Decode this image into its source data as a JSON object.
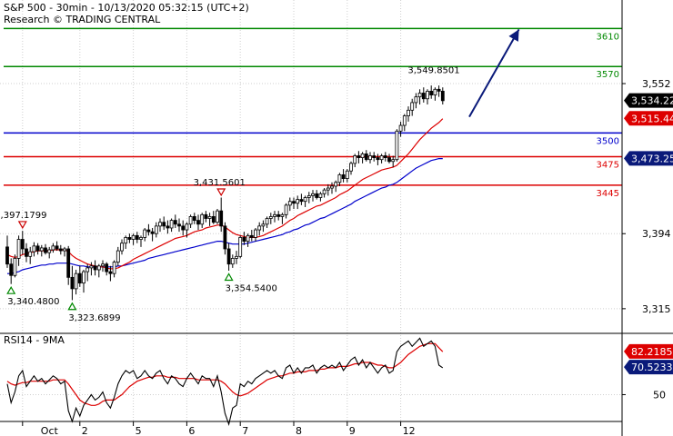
{
  "header": {
    "title": "S&P 500 - 30min - 10/13/2020 05:32:15 (UTC+2)",
    "subtitle": "Research © TRADING CENTRAL"
  },
  "colors": {
    "price": "#000000",
    "ma_fast": "#dd0000",
    "ma_slow": "#0000cc",
    "resistance": "#008800",
    "pivot": "#0000cc",
    "support": "#dd0000",
    "arrow": "#0a1a7a",
    "badge_last": "#000000",
    "badge_fast": "#dd0000",
    "badge_slow": "#0a1a7a",
    "grid": "#cfcfcf",
    "rsi": "#000000",
    "rsi_ma": "#dd0000"
  },
  "chart_data": [
    {
      "type": "candlestick",
      "ylim": [
        3290,
        3640
      ],
      "ytick_labels": [
        "3,552",
        "3,394",
        "3,315"
      ],
      "yticks": [
        3552,
        3394,
        3315
      ],
      "xtick_labels": [
        "Oct",
        "2",
        "5",
        "6",
        "7",
        "8",
        "9",
        "12"
      ],
      "grid": true,
      "levels": [
        {
          "value": 3610,
          "label": "3610",
          "kind": "resistance"
        },
        {
          "value": 3570,
          "label": "3570",
          "kind": "resistance"
        },
        {
          "value": 3500,
          "label": "3500",
          "kind": "pivot"
        },
        {
          "value": 3475,
          "label": "3475",
          "kind": "support"
        },
        {
          "value": 3445,
          "label": "3445",
          "kind": "support"
        }
      ],
      "badges": [
        {
          "value": 3534.22,
          "label": "3,534.22",
          "kind": "last"
        },
        {
          "value": 3515.44,
          "label": "3,515.44",
          "kind": "fast"
        },
        {
          "value": 3473.25,
          "label": "3,473.25",
          "kind": "slow"
        }
      ],
      "annotations": [
        {
          "label": "3,397.1799",
          "value": 3397.1799,
          "bar": 4,
          "kind": "high"
        },
        {
          "label": "3,340.4800",
          "value": 3340.48,
          "bar": 1,
          "kind": "low"
        },
        {
          "label": "3,323.6899",
          "value": 3323.6899,
          "bar": 17,
          "kind": "low"
        },
        {
          "label": "3,431.5601",
          "value": 3431.5601,
          "bar": 56,
          "kind": "high"
        },
        {
          "label": "3,354.5400",
          "value": 3354.54,
          "bar": 58,
          "kind": "low"
        },
        {
          "label": "3,549.8501",
          "value": 3549.8501,
          "bar": 112,
          "kind": "high"
        }
      ],
      "projection": {
        "from": [
          3517,
          120
        ],
        "to": [
          3609,
          133
        ]
      },
      "ohlc": [
        [
          3380,
          3392,
          3358,
          3362
        ],
        [
          3362,
          3368,
          3341,
          3350
        ],
        [
          3350,
          3372,
          3348,
          3368
        ],
        [
          3368,
          3392,
          3360,
          3388
        ],
        [
          3388,
          3397,
          3372,
          3378
        ],
        [
          3378,
          3384,
          3364,
          3370
        ],
        [
          3370,
          3380,
          3362,
          3375
        ],
        [
          3375,
          3385,
          3370,
          3381
        ],
        [
          3381,
          3384,
          3372,
          3376
        ],
        [
          3376,
          3382,
          3370,
          3379
        ],
        [
          3379,
          3383,
          3372,
          3374
        ],
        [
          3374,
          3380,
          3368,
          3377
        ],
        [
          3377,
          3384,
          3374,
          3381
        ],
        [
          3381,
          3386,
          3376,
          3378
        ],
        [
          3378,
          3382,
          3372,
          3376
        ],
        [
          3376,
          3380,
          3370,
          3378
        ],
        [
          3378,
          3381,
          3340,
          3348
        ],
        [
          3348,
          3360,
          3324,
          3336
        ],
        [
          3336,
          3356,
          3330,
          3352
        ],
        [
          3352,
          3360,
          3338,
          3342
        ],
        [
          3342,
          3356,
          3332,
          3354
        ],
        [
          3354,
          3362,
          3344,
          3358
        ],
        [
          3358,
          3364,
          3350,
          3360
        ],
        [
          3360,
          3366,
          3350,
          3356
        ],
        [
          3356,
          3362,
          3348,
          3360
        ],
        [
          3360,
          3366,
          3354,
          3362
        ],
        [
          3362,
          3364,
          3350,
          3354
        ],
        [
          3354,
          3360,
          3344,
          3352
        ],
        [
          3352,
          3366,
          3348,
          3364
        ],
        [
          3364,
          3380,
          3360,
          3376
        ],
        [
          3376,
          3388,
          3372,
          3384
        ],
        [
          3384,
          3392,
          3378,
          3390
        ],
        [
          3390,
          3394,
          3384,
          3388
        ],
        [
          3388,
          3394,
          3382,
          3392
        ],
        [
          3392,
          3396,
          3384,
          3388
        ],
        [
          3388,
          3392,
          3380,
          3390
        ],
        [
          3390,
          3400,
          3386,
          3398
        ],
        [
          3398,
          3404,
          3392,
          3396
        ],
        [
          3396,
          3400,
          3386,
          3394
        ],
        [
          3394,
          3406,
          3390,
          3402
        ],
        [
          3402,
          3410,
          3396,
          3406
        ],
        [
          3406,
          3412,
          3398,
          3402
        ],
        [
          3402,
          3408,
          3394,
          3400
        ],
        [
          3400,
          3410,
          3396,
          3408
        ],
        [
          3408,
          3414,
          3400,
          3404
        ],
        [
          3404,
          3410,
          3396,
          3402
        ],
        [
          3402,
          3408,
          3392,
          3398
        ],
        [
          3398,
          3406,
          3390,
          3404
        ],
        [
          3404,
          3414,
          3400,
          3412
        ],
        [
          3412,
          3416,
          3404,
          3408
        ],
        [
          3408,
          3414,
          3398,
          3404
        ],
        [
          3404,
          3416,
          3400,
          3414
        ],
        [
          3414,
          3418,
          3406,
          3410
        ],
        [
          3410,
          3416,
          3402,
          3412
        ],
        [
          3412,
          3418,
          3404,
          3406
        ],
        [
          3406,
          3420,
          3404,
          3418
        ],
        [
          3418,
          3432,
          3396,
          3402
        ],
        [
          3402,
          3406,
          3372,
          3378
        ],
        [
          3378,
          3384,
          3355,
          3362
        ],
        [
          3362,
          3372,
          3358,
          3368
        ],
        [
          3368,
          3376,
          3362,
          3370
        ],
        [
          3370,
          3392,
          3368,
          3390
        ],
        [
          3390,
          3396,
          3382,
          3386
        ],
        [
          3386,
          3394,
          3380,
          3392
        ],
        [
          3392,
          3398,
          3386,
          3390
        ],
        [
          3390,
          3400,
          3386,
          3398
        ],
        [
          3398,
          3406,
          3392,
          3402
        ],
        [
          3402,
          3408,
          3396,
          3404
        ],
        [
          3404,
          3412,
          3400,
          3410
        ],
        [
          3410,
          3416,
          3404,
          3412
        ],
        [
          3412,
          3418,
          3406,
          3414
        ],
        [
          3414,
          3418,
          3408,
          3412
        ],
        [
          3412,
          3416,
          3404,
          3414
        ],
        [
          3414,
          3426,
          3410,
          3424
        ],
        [
          3424,
          3432,
          3418,
          3428
        ],
        [
          3428,
          3432,
          3420,
          3426
        ],
        [
          3426,
          3434,
          3420,
          3430
        ],
        [
          3430,
          3436,
          3424,
          3428
        ],
        [
          3428,
          3434,
          3422,
          3432
        ],
        [
          3432,
          3438,
          3426,
          3434
        ],
        [
          3434,
          3440,
          3428,
          3436
        ],
        [
          3436,
          3440,
          3430,
          3432
        ],
        [
          3432,
          3438,
          3428,
          3436
        ],
        [
          3436,
          3442,
          3432,
          3440
        ],
        [
          3440,
          3446,
          3434,
          3442
        ],
        [
          3442,
          3448,
          3436,
          3444
        ],
        [
          3444,
          3450,
          3438,
          3448
        ],
        [
          3448,
          3458,
          3444,
          3456
        ],
        [
          3456,
          3462,
          3448,
          3452
        ],
        [
          3452,
          3462,
          3448,
          3460
        ],
        [
          3460,
          3470,
          3456,
          3468
        ],
        [
          3468,
          3478,
          3464,
          3476
        ],
        [
          3476,
          3481,
          3468,
          3474
        ],
        [
          3474,
          3480,
          3468,
          3478
        ],
        [
          3478,
          3482,
          3470,
          3472
        ],
        [
          3472,
          3480,
          3468,
          3476
        ],
        [
          3476,
          3480,
          3470,
          3474
        ],
        [
          3474,
          3478,
          3466,
          3472
        ],
        [
          3472,
          3478,
          3468,
          3476
        ],
        [
          3476,
          3480,
          3470,
          3474
        ],
        [
          3474,
          3478,
          3468,
          3470
        ],
        [
          3470,
          3476,
          3464,
          3472
        ],
        [
          3472,
          3504,
          3470,
          3502
        ],
        [
          3502,
          3512,
          3496,
          3508
        ],
        [
          3508,
          3520,
          3502,
          3518
        ],
        [
          3518,
          3528,
          3512,
          3524
        ],
        [
          3524,
          3536,
          3518,
          3532
        ],
        [
          3532,
          3542,
          3526,
          3538
        ],
        [
          3538,
          3546,
          3530,
          3542
        ],
        [
          3542,
          3548,
          3532,
          3536
        ],
        [
          3536,
          3546,
          3530,
          3544
        ],
        [
          3544,
          3550,
          3536,
          3540
        ],
        [
          3540,
          3548,
          3534,
          3546
        ],
        [
          3546,
          3550,
          3538,
          3544
        ],
        [
          3544,
          3548,
          3530,
          3534
        ]
      ],
      "ma_fast": [
        3372,
        3370,
        3369,
        3370,
        3372,
        3373,
        3374,
        3375,
        3376,
        3376,
        3376,
        3376,
        3377,
        3377,
        3377,
        3377,
        3375,
        3371,
        3368,
        3366,
        3364,
        3362,
        3361,
        3360,
        3359,
        3359,
        3358,
        3357,
        3357,
        3358,
        3360,
        3362,
        3364,
        3367,
        3369,
        3371,
        3373,
        3375,
        3377,
        3379,
        3381,
        3383,
        3385,
        3387,
        3389,
        3390,
        3391,
        3392,
        3394,
        3396,
        3397,
        3398,
        3400,
        3401,
        3402,
        3403,
        3403,
        3401,
        3398,
        3395,
        3393,
        3392,
        3391,
        3390,
        3390,
        3390,
        3391,
        3392,
        3394,
        3396,
        3398,
        3400,
        3402,
        3405,
        3408,
        3410,
        3413,
        3415,
        3417,
        3419,
        3421,
        3423,
        3424,
        3426,
        3428,
        3430,
        3432,
        3435,
        3437,
        3439,
        3442,
        3445,
        3448,
        3451,
        3453,
        3455,
        3457,
        3459,
        3461,
        3462,
        3463,
        3464,
        3466,
        3470,
        3474,
        3478,
        3483,
        3488,
        3493,
        3497,
        3501,
        3505,
        3508,
        3511,
        3515
      ],
      "ma_slow": [
        3352,
        3352,
        3353,
        3354,
        3356,
        3357,
        3358,
        3359,
        3360,
        3361,
        3361,
        3362,
        3362,
        3363,
        3363,
        3363,
        3363,
        3362,
        3361,
        3360,
        3360,
        3359,
        3359,
        3359,
        3359,
        3359,
        3359,
        3359,
        3359,
        3360,
        3360,
        3361,
        3362,
        3363,
        3364,
        3365,
        3366,
        3368,
        3369,
        3370,
        3371,
        3372,
        3373,
        3374,
        3375,
        3376,
        3377,
        3378,
        3379,
        3380,
        3381,
        3382,
        3383,
        3384,
        3385,
        3386,
        3386,
        3385,
        3384,
        3383,
        3383,
        3383,
        3383,
        3384,
        3385,
        3386,
        3387,
        3388,
        3389,
        3390,
        3391,
        3392,
        3393,
        3395,
        3396,
        3398,
        3399,
        3401,
        3403,
        3404,
        3406,
        3408,
        3410,
        3411,
        3413,
        3415,
        3417,
        3419,
        3421,
        3423,
        3425,
        3428,
        3430,
        3432,
        3434,
        3436,
        3438,
        3440,
        3442,
        3443,
        3445,
        3446,
        3448,
        3451,
        3454,
        3457,
        3460,
        3463,
        3465,
        3467,
        3469,
        3471,
        3472,
        3473,
        3473
      ]
    },
    {
      "type": "line",
      "title": "RSI14 - 9MA",
      "ylim": [
        30,
        95
      ],
      "ytick_labels": [
        "50"
      ],
      "yticks": [
        50
      ],
      "badges": [
        {
          "value": 82.2185,
          "label": "82.2185",
          "kind": "fast"
        },
        {
          "value": 70.5233,
          "label": "70.5233",
          "kind": "slow"
        }
      ],
      "rsi": [
        58,
        44,
        52,
        64,
        68,
        56,
        60,
        64,
        60,
        62,
        58,
        61,
        64,
        62,
        58,
        60,
        38,
        30,
        40,
        34,
        42,
        46,
        50,
        46,
        48,
        52,
        44,
        40,
        48,
        58,
        64,
        68,
        66,
        68,
        62,
        64,
        68,
        64,
        62,
        66,
        68,
        62,
        58,
        64,
        62,
        58,
        56,
        62,
        66,
        62,
        58,
        64,
        62,
        62,
        56,
        64,
        52,
        36,
        28,
        40,
        42,
        58,
        56,
        60,
        58,
        62,
        64,
        66,
        68,
        66,
        68,
        64,
        62,
        70,
        72,
        66,
        70,
        66,
        70,
        70,
        72,
        66,
        70,
        72,
        70,
        72,
        70,
        74,
        68,
        72,
        76,
        78,
        72,
        76,
        70,
        74,
        70,
        66,
        70,
        72,
        66,
        68,
        82,
        86,
        88,
        90,
        86,
        89,
        92,
        86,
        88,
        90,
        86,
        72,
        70
      ],
      "rsi_ma": [
        60,
        58,
        57,
        58,
        59,
        59,
        60,
        60,
        60,
        60,
        60,
        60,
        61,
        61,
        61,
        61,
        58,
        54,
        50,
        46,
        44,
        43,
        42,
        42,
        43,
        45,
        46,
        46,
        46,
        48,
        50,
        53,
        56,
        58,
        60,
        61,
        62,
        63,
        63,
        64,
        64,
        64,
        63,
        63,
        63,
        62,
        62,
        62,
        62,
        62,
        61,
        61,
        61,
        61,
        61,
        61,
        60,
        58,
        55,
        52,
        50,
        49,
        50,
        51,
        53,
        55,
        57,
        59,
        61,
        62,
        63,
        64,
        64,
        65,
        66,
        66,
        67,
        67,
        67,
        68,
        68,
        68,
        69,
        69,
        70,
        70,
        70,
        71,
        71,
        71,
        72,
        73,
        73,
        74,
        74,
        74,
        73,
        72,
        72,
        71,
        70,
        70,
        72,
        74,
        77,
        80,
        82,
        84,
        86,
        87,
        88,
        88,
        88,
        85,
        82
      ]
    }
  ]
}
